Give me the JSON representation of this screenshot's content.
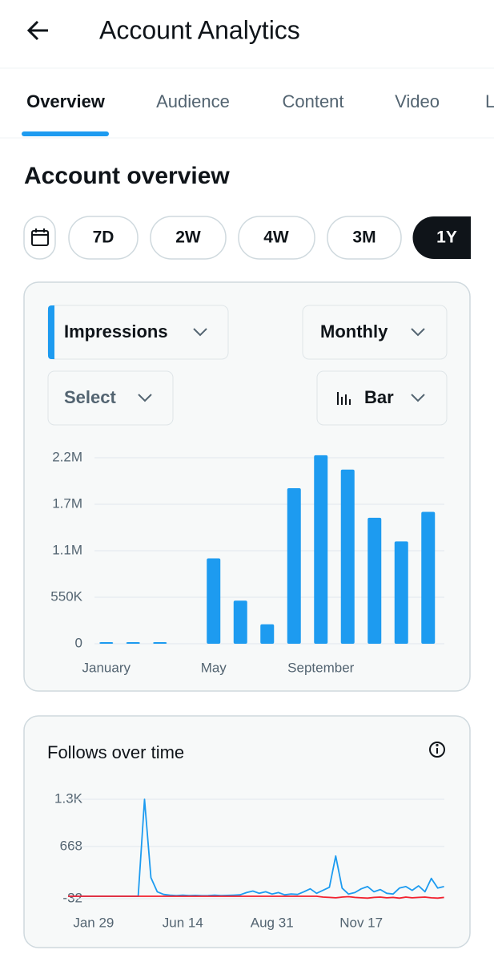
{
  "header": {
    "title": "Account Analytics"
  },
  "tabs": [
    "Overview",
    "Audience",
    "Content",
    "Video",
    "L"
  ],
  "section_title": "Account overview",
  "ranges": [
    "7D",
    "2W",
    "4W",
    "3M",
    "1Y"
  ],
  "controls": {
    "metric": "Impressions",
    "interval": "Monthly",
    "compare": "Select",
    "chart_type": "Bar"
  },
  "chart_data": [
    {
      "type": "bar",
      "color": "#1d9bf0",
      "categories": [
        "January",
        null,
        null,
        null,
        "May",
        null,
        null,
        null,
        "September",
        null,
        null,
        null,
        null
      ],
      "values": [
        3000,
        3000,
        3000,
        null,
        1010000,
        510000,
        230000,
        1840000,
        2230000,
        2060000,
        1490000,
        1210000,
        1560000
      ],
      "ylim": [
        0,
        2200000
      ],
      "yticks": [
        0,
        {
          "value": 550000,
          "label": "550K"
        },
        {
          "value": 1100000,
          "label": "1.1M"
        },
        {
          "value": 1650000,
          "label": "1.7M"
        },
        {
          "value": 2200000,
          "label": "2.2M"
        }
      ],
      "grid": true
    },
    {
      "type": "line",
      "title": "Follows over time",
      "categories": [
        null,
        null,
        null,
        null,
        "Jan 29",
        null,
        null,
        null,
        null,
        null,
        null,
        null,
        null,
        null,
        null,
        null,
        null,
        null,
        "Jun 14",
        null,
        null,
        null,
        null,
        null,
        null,
        null,
        null,
        null,
        null,
        null,
        null,
        null,
        "Aug 31",
        null,
        null,
        null,
        null,
        null,
        null,
        null,
        null,
        null,
        null,
        null,
        null,
        null,
        "Nov 17",
        null,
        null,
        null,
        null,
        null,
        null,
        null,
        null,
        null,
        null,
        null,
        null,
        null
      ],
      "series": [
        {
          "color": "#1d9bf0",
          "values": [
            0,
            0,
            0,
            0,
            0,
            0,
            0,
            0,
            0,
            0,
            0,
            0,
            1300,
            250,
            60,
            25,
            15,
            10,
            15,
            10,
            12,
            8,
            10,
            15,
            10,
            12,
            15,
            20,
            50,
            70,
            40,
            60,
            30,
            50,
            20,
            30,
            25,
            60,
            100,
            40,
            80,
            120,
            540,
            110,
            30,
            50,
            100,
            130,
            60,
            90,
            40,
            30,
            110,
            130,
            80,
            140,
            60,
            240,
            110,
            130
          ]
        },
        {
          "color": "#f4212e",
          "values": [
            0,
            0,
            0,
            0,
            0,
            0,
            0,
            0,
            0,
            0,
            0,
            0,
            0,
            0,
            0,
            0,
            0,
            0,
            0,
            0,
            0,
            0,
            0,
            0,
            0,
            0,
            0,
            0,
            0,
            0,
            0,
            0,
            0,
            0,
            0,
            0,
            0,
            0,
            0,
            0,
            -10,
            -15,
            -20,
            -10,
            -5,
            -15,
            -20,
            -25,
            -15,
            -10,
            -20,
            -15,
            -25,
            -10,
            -20,
            -15,
            -10,
            -20,
            -25,
            -15
          ]
        }
      ],
      "ylim": [
        -32,
        1300
      ],
      "yticks": [
        -32,
        668,
        {
          "value": 1300,
          "label": "1.3K"
        }
      ],
      "grid": true
    }
  ]
}
